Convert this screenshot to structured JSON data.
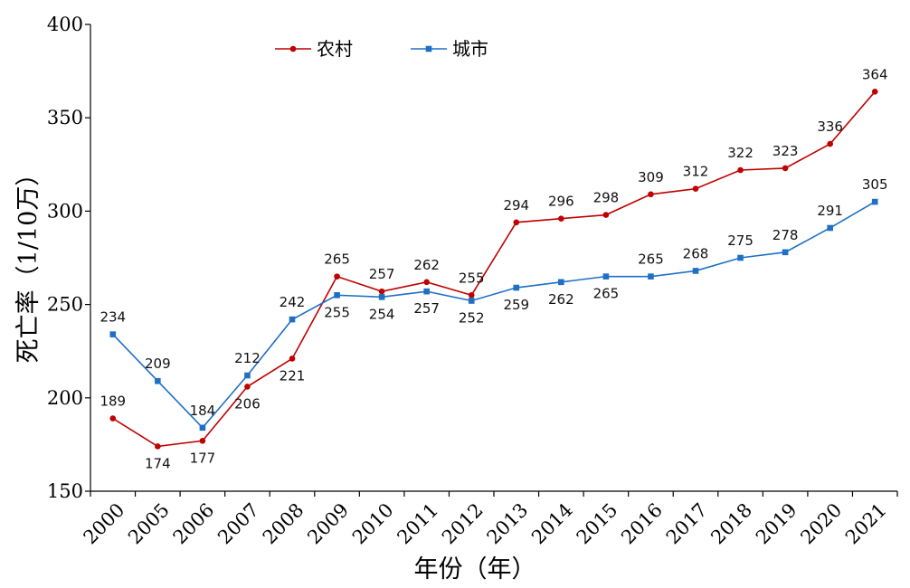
{
  "chart_data": {
    "type": "line",
    "title": "",
    "xlabel": "年份（年）",
    "ylabel": "死亡率（1/10万）",
    "categories": [
      "2000",
      "2005",
      "2006",
      "2007",
      "2008",
      "2009",
      "2010",
      "2011",
      "2012",
      "2013",
      "2014",
      "2015",
      "2016",
      "2017",
      "2018",
      "2019",
      "2020",
      "2021"
    ],
    "ylim": [
      150,
      400
    ],
    "yticks": [
      150,
      200,
      250,
      300,
      350,
      400
    ],
    "grid": false,
    "legend_position": "top-left",
    "series": [
      {
        "name": "农村",
        "color": "#c00000",
        "marker": "circle",
        "values": [
          189,
          174,
          177,
          206,
          221,
          265,
          257,
          262,
          255,
          294,
          296,
          298,
          309,
          312,
          322,
          323,
          336,
          364
        ],
        "labels": [
          "189",
          "174",
          "177",
          "206",
          "221",
          "265",
          "257",
          "262",
          "255",
          "294",
          "296",
          "298",
          "309",
          "312",
          "322",
          "323",
          "336",
          "364"
        ]
      },
      {
        "name": "城市",
        "color": "#1f6fc5",
        "marker": "square",
        "values": [
          234,
          209,
          184,
          212,
          242,
          255,
          254,
          257,
          252,
          259,
          262,
          265,
          265,
          268,
          275,
          278,
          291,
          305
        ],
        "labels": [
          "234",
          "209",
          "184",
          "212",
          "242",
          "255",
          "254",
          "257",
          "252",
          "259",
          "262",
          "265",
          "265",
          "268",
          "275",
          "278",
          "291",
          "305"
        ]
      }
    ]
  }
}
